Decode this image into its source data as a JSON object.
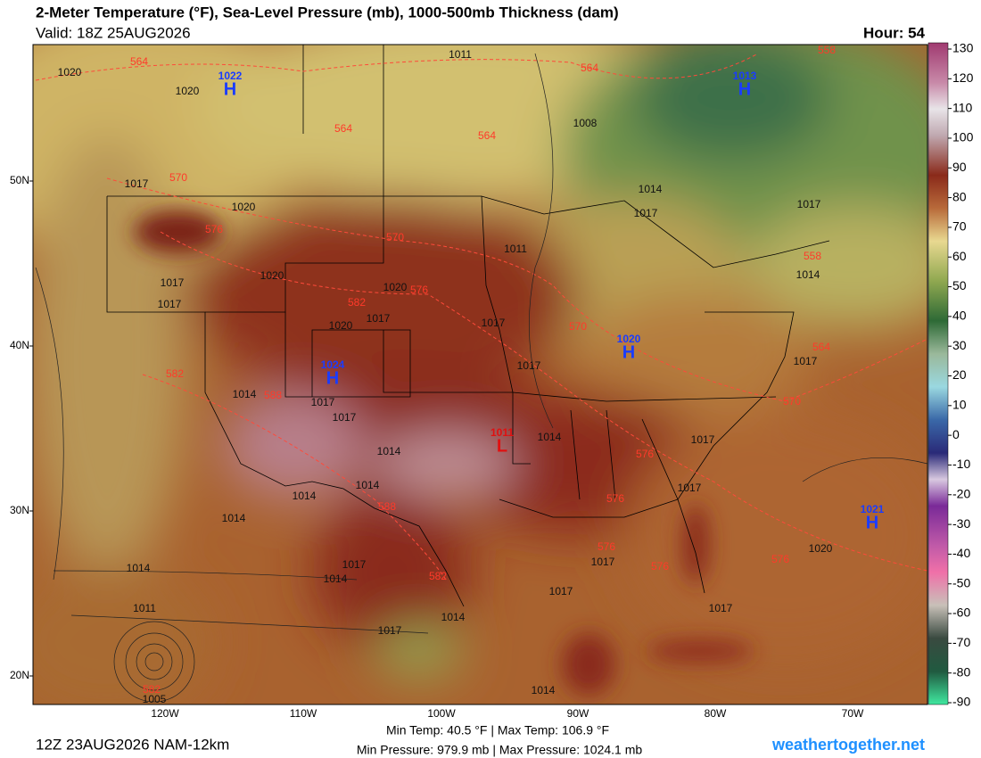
{
  "header": {
    "title": "2-Meter Temperature (°F), Sea-Level Pressure (mb), 1000-500mb Thickness (dam)",
    "valid": "Valid: 18Z 25AUG2026",
    "hour": "Hour: 54"
  },
  "map": {
    "lat_labels": [
      "50N",
      "40N",
      "30N",
      "20N"
    ],
    "lon_labels": [
      "120W",
      "110W",
      "100W",
      "90W",
      "80W",
      "70W"
    ],
    "centers": [
      {
        "symbol": "H",
        "value": "1022"
      },
      {
        "symbol": "H",
        "value": "1013"
      },
      {
        "symbol": "H",
        "value": "1020"
      },
      {
        "symbol": "H",
        "value": "1024"
      },
      {
        "symbol": "L",
        "value": "1011"
      },
      {
        "symbol": "H",
        "value": "1021"
      }
    ],
    "isobar_labels": [
      "1020",
      "1020",
      "1011",
      "1008",
      "1014",
      "1017",
      "1017",
      "1017",
      "1020",
      "1017",
      "1017",
      "1020",
      "1020",
      "1020",
      "1017",
      "1011",
      "1017",
      "1017",
      "1014",
      "1017",
      "1017",
      "1014",
      "1014",
      "1014",
      "1014",
      "1014",
      "1017",
      "1017",
      "1017",
      "1014",
      "1011",
      "1005",
      "1017",
      "1014",
      "1017",
      "1017",
      "1017",
      "1014",
      "1017",
      "1014",
      "1020",
      "1014"
    ],
    "thickness_labels": [
      "564",
      "564",
      "564",
      "564",
      "558",
      "570",
      "576",
      "570",
      "576",
      "582",
      "570",
      "564",
      "570",
      "558",
      "582",
      "588",
      "588",
      "582",
      "576",
      "576",
      "576",
      "576",
      "576",
      "582"
    ]
  },
  "colorbar": {
    "ticks": [
      130,
      120,
      110,
      100,
      90,
      80,
      70,
      60,
      50,
      40,
      30,
      20,
      10,
      0,
      -10,
      -20,
      -30,
      -40,
      -50,
      -60,
      -70,
      -80,
      -90
    ]
  },
  "footer": {
    "temp": "Min Temp: 40.5 °F | Max Temp: 106.9 °F",
    "pressure": "Min Pressure: 979.9 mb | Max Pressure: 1024.1 mb",
    "run": "12Z 23AUG2026 NAM-12km",
    "site": "weathertogether.net"
  }
}
